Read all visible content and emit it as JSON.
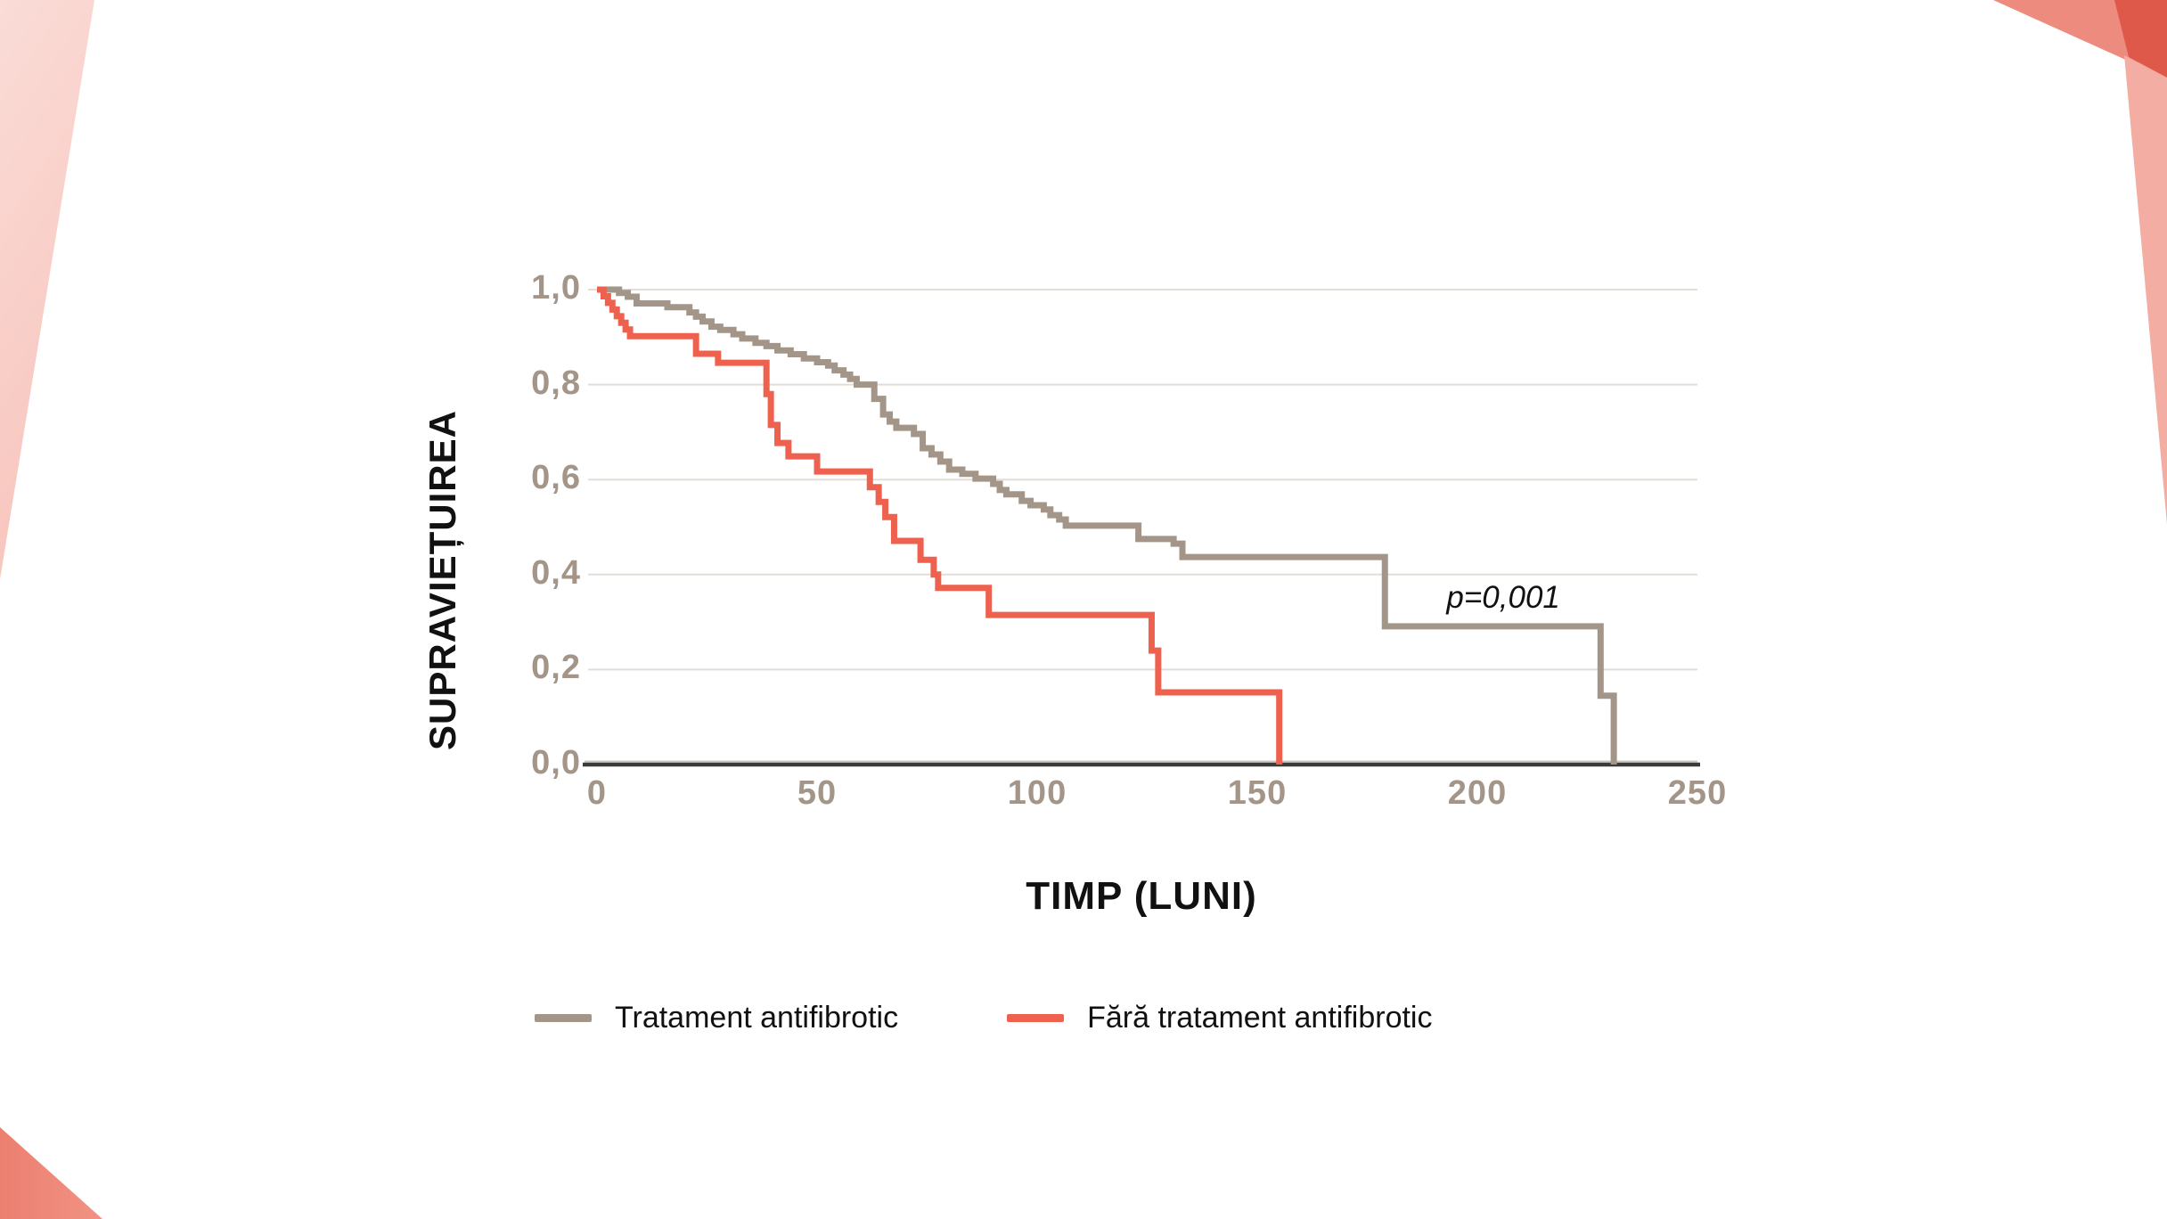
{
  "slide": {
    "background_color": "#ffffff",
    "decoration_colors": {
      "corner_pink_light": "#f9d0c9",
      "corner_pink_lighter": "#fbdcd7",
      "corner_salmon": "#ec8b7e",
      "corner_salmon_sliver": "#f4ada3",
      "corner_dark_red": "#df594b",
      "bottom_left_salmon": "#ee8678"
    }
  },
  "chart_data": {
    "type": "line",
    "subtype": "kaplan-meier-step-survival",
    "title": "",
    "xlabel": "TIMP (LUNI)",
    "ylabel": "SUPRAVIEȚUIREA",
    "xlim": [
      0,
      250
    ],
    "ylim": [
      0.0,
      1.0
    ],
    "x_ticks": [
      0,
      50,
      100,
      150,
      200,
      250
    ],
    "x_tick_labels": [
      "0",
      "50",
      "100",
      "150",
      "200",
      "250"
    ],
    "y_tick_values": [
      1.0,
      0.8,
      0.6,
      0.4,
      0.2,
      0.0
    ],
    "y_tick_labels": [
      "1,0",
      "0,8",
      "0,6",
      "0,4",
      "0,2",
      "0,0"
    ],
    "grid": "horizontal",
    "grid_color": "#e2ddd7",
    "axis_line_color": "#3b3b3b",
    "axis_light_line_color": "#ccc6c0",
    "tick_label_color": "#a39588",
    "legend_position": "bottom",
    "annotation": {
      "text": "p=0,001",
      "x_month": 193,
      "y_value": 0.35
    },
    "series": [
      {
        "name": "Tratament antifibrotic",
        "color": "#a39689",
        "steps": [
          [
            0,
            1.0
          ],
          [
            5,
            0.993
          ],
          [
            7,
            0.985
          ],
          [
            9,
            0.971
          ],
          [
            16,
            0.963
          ],
          [
            21,
            0.952
          ],
          [
            22.5,
            0.943
          ],
          [
            24,
            0.933
          ],
          [
            26,
            0.922
          ],
          [
            28,
            0.915
          ],
          [
            31,
            0.906
          ],
          [
            33,
            0.897
          ],
          [
            36,
            0.888
          ],
          [
            38.5,
            0.881
          ],
          [
            41,
            0.872
          ],
          [
            44,
            0.864
          ],
          [
            47,
            0.855
          ],
          [
            50,
            0.847
          ],
          [
            52.5,
            0.84
          ],
          [
            54,
            0.83
          ],
          [
            56,
            0.821
          ],
          [
            57.5,
            0.812
          ],
          [
            59,
            0.8
          ],
          [
            63,
            0.77
          ],
          [
            65,
            0.737
          ],
          [
            66.5,
            0.722
          ],
          [
            68,
            0.709
          ],
          [
            72,
            0.696
          ],
          [
            74,
            0.666
          ],
          [
            76,
            0.653
          ],
          [
            78,
            0.638
          ],
          [
            80,
            0.621
          ],
          [
            83,
            0.612
          ],
          [
            86,
            0.602
          ],
          [
            90,
            0.591
          ],
          [
            91.5,
            0.578
          ],
          [
            93,
            0.569
          ],
          [
            96.5,
            0.555
          ],
          [
            98.5,
            0.546
          ],
          [
            101.5,
            0.537
          ],
          [
            103,
            0.525
          ],
          [
            105,
            0.516
          ],
          [
            106.5,
            0.503
          ],
          [
            123,
            0.475
          ],
          [
            131,
            0.465
          ],
          [
            133,
            0.437
          ],
          [
            179,
            0.291
          ],
          [
            228,
            0.145
          ],
          [
            231,
            0.0
          ]
        ]
      },
      {
        "name": "Fără tratament antifibrotic",
        "color": "#ee614e",
        "steps": [
          [
            0,
            1.0
          ],
          [
            1.5,
            0.986
          ],
          [
            2.5,
            0.972
          ],
          [
            3.5,
            0.958
          ],
          [
            4.5,
            0.944
          ],
          [
            5.5,
            0.93
          ],
          [
            6.5,
            0.916
          ],
          [
            7.5,
            0.902
          ],
          [
            22.5,
            0.865
          ],
          [
            27.5,
            0.846
          ],
          [
            38.5,
            0.78
          ],
          [
            39.5,
            0.715
          ],
          [
            41,
            0.677
          ],
          [
            43.5,
            0.649
          ],
          [
            50,
            0.617
          ],
          [
            62,
            0.584
          ],
          [
            64,
            0.553
          ],
          [
            65.5,
            0.521
          ],
          [
            67.5,
            0.471
          ],
          [
            73.5,
            0.431
          ],
          [
            76.5,
            0.4
          ],
          [
            77.5,
            0.372
          ],
          [
            89,
            0.315
          ],
          [
            126,
            0.24
          ],
          [
            127.5,
            0.152
          ],
          [
            155,
            0.0
          ]
        ]
      }
    ]
  },
  "legend": {
    "items": [
      {
        "label": "Tratament antifibrotic",
        "color": "#a39689"
      },
      {
        "label": "Fără tratament antifibrotic",
        "color": "#ee614e"
      }
    ]
  }
}
